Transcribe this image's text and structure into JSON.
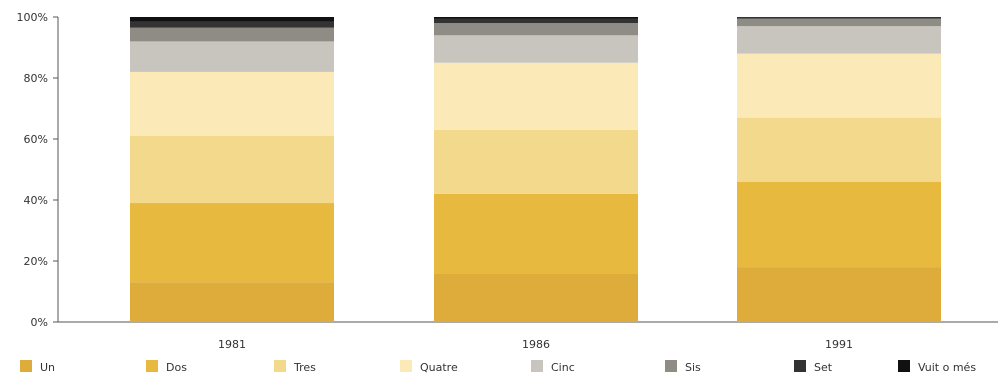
{
  "chart_data": {
    "type": "bar",
    "stacked": true,
    "categories": [
      "1981",
      "1986",
      "1991"
    ],
    "series": [
      {
        "name": "Un",
        "color": "#deac3b",
        "values": [
          13,
          16,
          18
        ]
      },
      {
        "name": "Dos",
        "color": "#e7b93e",
        "values": [
          26,
          26,
          28
        ]
      },
      {
        "name": "Tres",
        "color": "#f2d98c",
        "values": [
          22,
          21,
          21
        ]
      },
      {
        "name": "Quatre",
        "color": "#fbeab8",
        "values": [
          21,
          22,
          21
        ]
      },
      {
        "name": "Cinc",
        "color": "#c8c5be",
        "values": [
          10,
          9,
          9
        ]
      },
      {
        "name": "Sis",
        "color": "#8f8b85",
        "values": [
          4.5,
          4,
          2.5
        ]
      },
      {
        "name": "Set",
        "color": "#333333",
        "values": [
          2,
          1.5,
          0.5
        ]
      },
      {
        "name": "Vuit o més",
        "color": "#111111",
        "values": [
          1.5,
          0.5,
          0
        ]
      }
    ],
    "yticks": [
      "0%",
      "20%",
      "40%",
      "60%",
      "80%",
      "100%"
    ],
    "ylim": [
      0,
      100
    ],
    "legend": "bottom",
    "grid": false
  }
}
